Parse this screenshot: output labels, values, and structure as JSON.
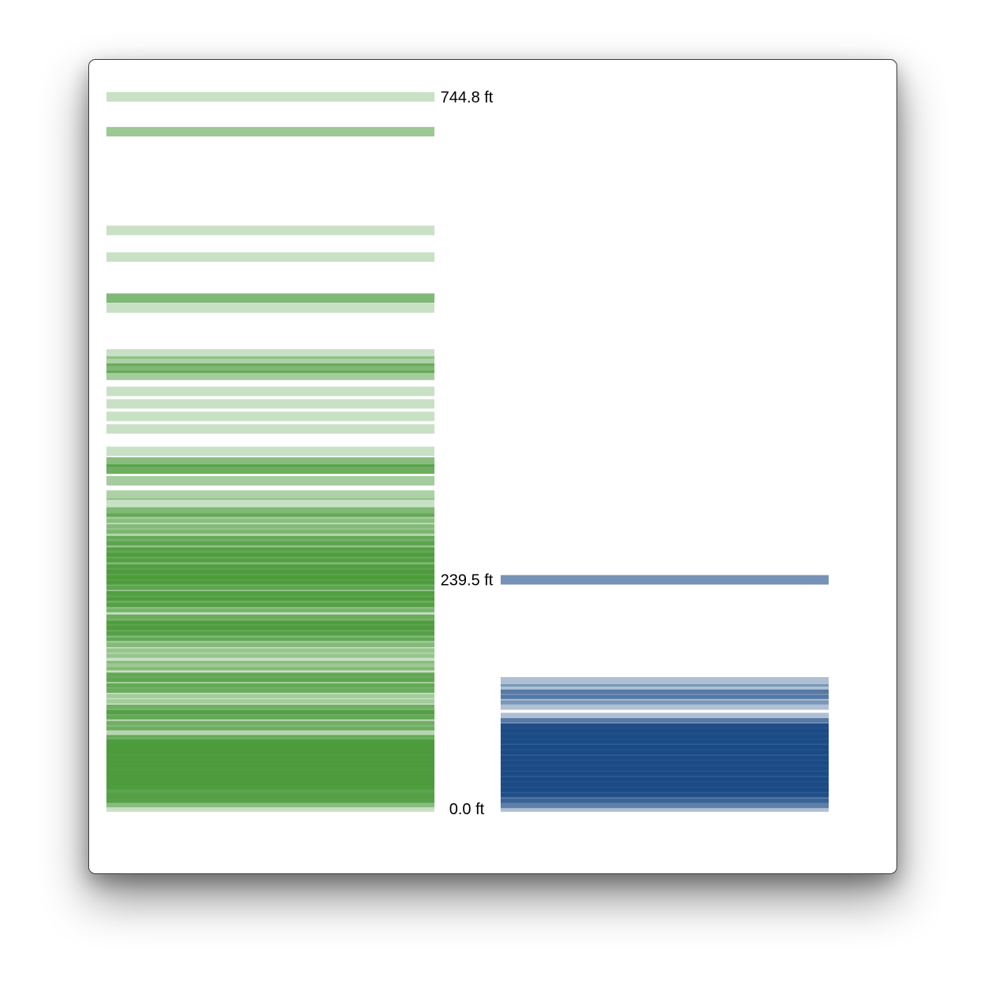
{
  "chart_data": {
    "type": "bar",
    "unit": "ft",
    "ylim": [
      0,
      744.8
    ],
    "labels": [
      {
        "text": "744.8 ft",
        "value": 744.8
      },
      {
        "text": "239.5 ft",
        "value": 239.5
      },
      {
        "text": "0.0 ft",
        "value": 0.0
      }
    ],
    "series": [
      {
        "color": "#4a9a3a",
        "values": [
          [
            744.8,
            0.3
          ],
          [
            708.4,
            0.55
          ],
          [
            605.2,
            0.3
          ],
          [
            577.2,
            0.3
          ],
          [
            534.2,
            0.7
          ],
          [
            523.9,
            0.3
          ],
          [
            475.9,
            0.3
          ],
          [
            468.4,
            0.45
          ],
          [
            461.0,
            0.7
          ],
          [
            453.5,
            0.5
          ],
          [
            436.7,
            0.3
          ],
          [
            423.6,
            0.3
          ],
          [
            410.5,
            0.3
          ],
          [
            397.4,
            0.3
          ],
          [
            374.0,
            0.3
          ],
          [
            362.8,
            0.65
          ],
          [
            355.3,
            0.8
          ],
          [
            343.2,
            0.5
          ],
          [
            328.2,
            0.45
          ],
          [
            319.8,
            0.3
          ],
          [
            310.4,
            0.7
          ],
          [
            303.9,
            0.5
          ],
          [
            298.3,
            0.3
          ],
          [
            292.7,
            0.55
          ],
          [
            287.1,
            0.4
          ],
          [
            280.5,
            0.75
          ],
          [
            274.9,
            0.6
          ],
          [
            268.4,
            0.85
          ],
          [
            262.8,
            0.8
          ],
          [
            257.2,
            0.7
          ],
          [
            250.6,
            0.9
          ],
          [
            245.0,
            0.85
          ],
          [
            239.5,
            0.9
          ],
          [
            233.9,
            0.75
          ],
          [
            228.3,
            0.55
          ],
          [
            222.7,
            0.9
          ],
          [
            216.1,
            0.8
          ],
          [
            210.5,
            0.65
          ],
          [
            203.9,
            0.3
          ],
          [
            198.3,
            0.75
          ],
          [
            191.8,
            0.9
          ],
          [
            186.2,
            0.8
          ],
          [
            180.6,
            0.7
          ],
          [
            174.0,
            0.55
          ],
          [
            168.4,
            0.3
          ],
          [
            162.8,
            0.4
          ],
          [
            157.2,
            0.3
          ],
          [
            149.7,
            0.55
          ],
          [
            143.1,
            0.3
          ],
          [
            137.5,
            0.8
          ],
          [
            131.9,
            0.4
          ],
          [
            126.3,
            0.75
          ],
          [
            120.7,
            0.3
          ],
          [
            115.1,
            0.3
          ],
          [
            109.5,
            0.3
          ],
          [
            103.9,
            0.7
          ],
          [
            98.3,
            0.8
          ],
          [
            92.6,
            0.3
          ],
          [
            87.0,
            0.7
          ],
          [
            80.5,
            0.4
          ],
          [
            72.1,
            0.8
          ],
          [
            67.4,
            0.9
          ],
          [
            62.7,
            0.85
          ],
          [
            58.0,
            0.9
          ],
          [
            53.3,
            0.8
          ],
          [
            48.6,
            0.9
          ],
          [
            43.9,
            0.85
          ],
          [
            39.3,
            0.8
          ],
          [
            34.6,
            0.9
          ],
          [
            29.9,
            0.85
          ],
          [
            25.2,
            0.9
          ],
          [
            20.5,
            0.75
          ],
          [
            15.8,
            0.6
          ],
          [
            11.1,
            0.85
          ],
          [
            6.4,
            0.5
          ],
          [
            1.7,
            0.3
          ]
        ]
      },
      {
        "color": "#1a4a85",
        "values": [
          [
            239.5,
            0.6
          ],
          [
            132.8,
            0.35
          ],
          [
            125.4,
            0.35
          ],
          [
            119.8,
            0.6
          ],
          [
            114.1,
            0.35
          ],
          [
            108.5,
            0.35
          ],
          [
            95.4,
            0.35
          ],
          [
            89.8,
            0.6
          ],
          [
            84.2,
            0.95
          ],
          [
            78.6,
            0.95
          ],
          [
            73.0,
            0.95
          ],
          [
            67.4,
            0.9
          ],
          [
            61.8,
            0.95
          ],
          [
            56.2,
            0.9
          ],
          [
            50.6,
            0.95
          ],
          [
            45.0,
            0.95
          ],
          [
            39.3,
            0.95
          ],
          [
            33.7,
            0.9
          ],
          [
            28.1,
            0.95
          ],
          [
            22.5,
            0.95
          ],
          [
            16.9,
            0.9
          ],
          [
            11.3,
            0.7
          ],
          [
            5.6,
            0.55
          ],
          [
            1.7,
            0.35
          ]
        ]
      }
    ]
  }
}
